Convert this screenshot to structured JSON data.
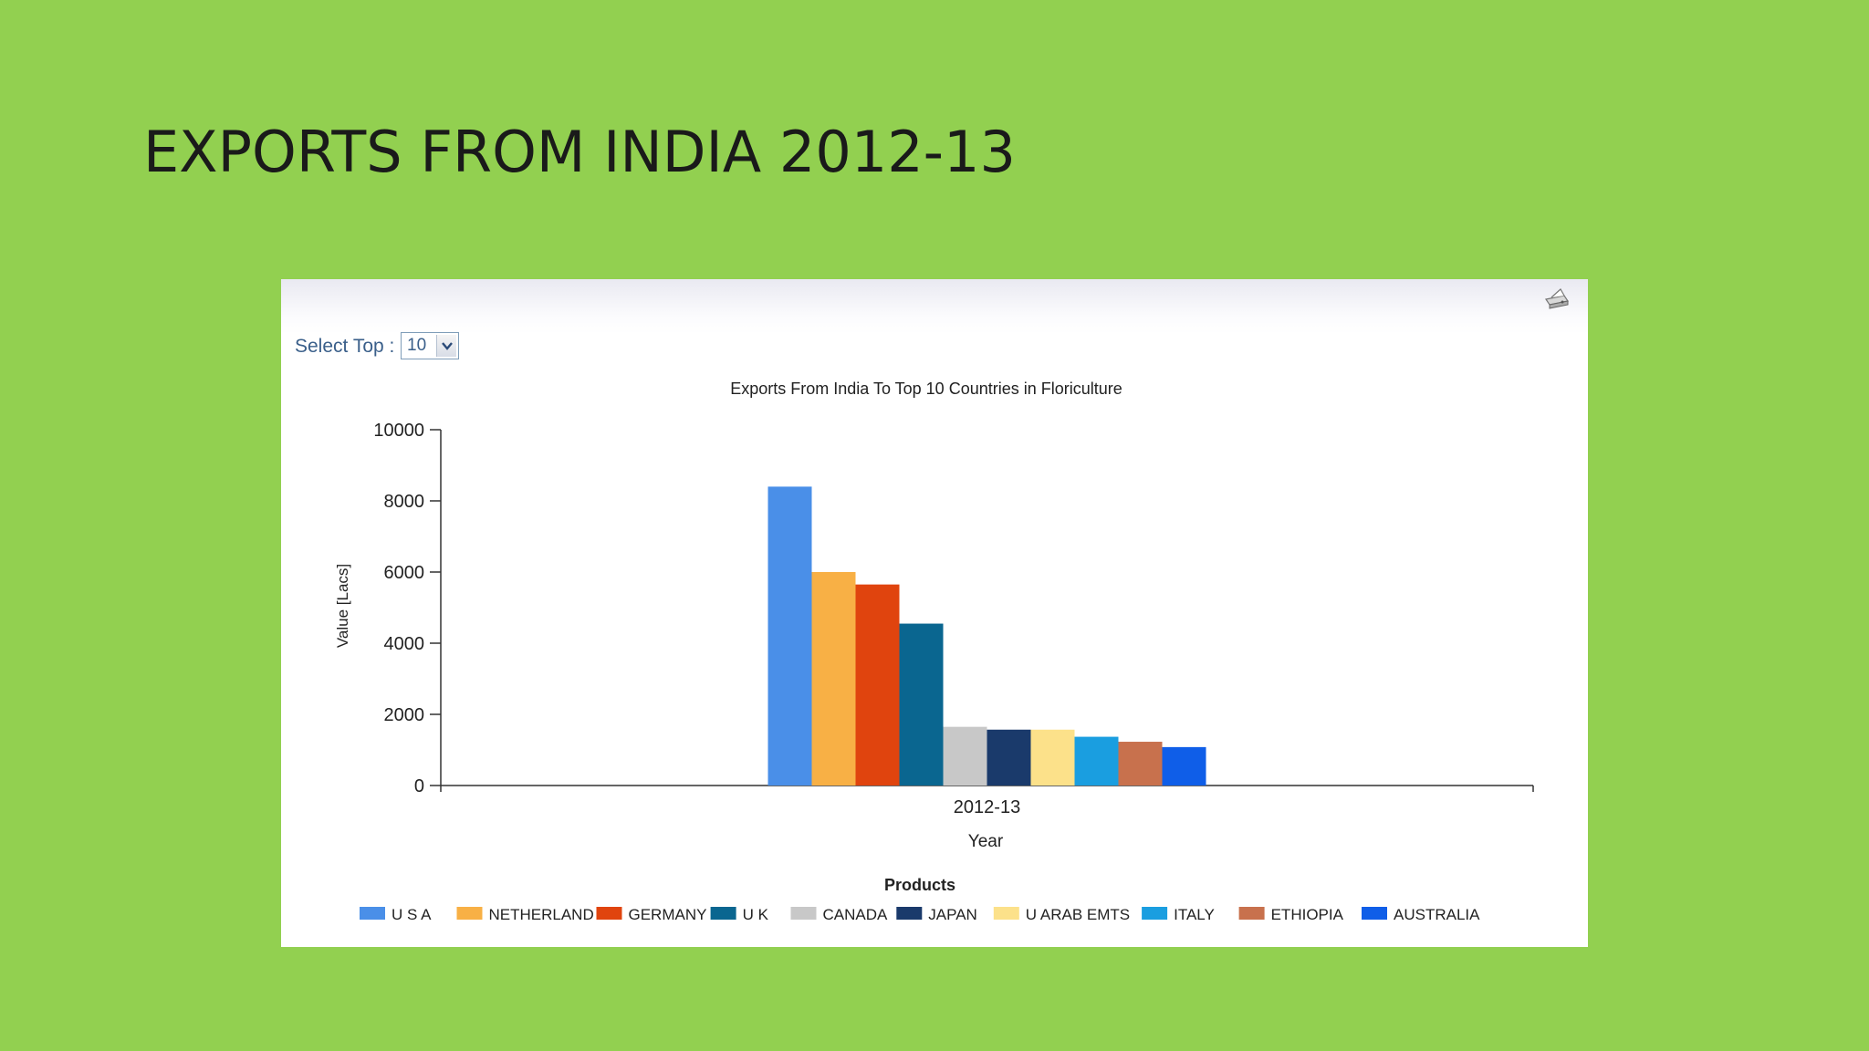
{
  "slide": {
    "title": "EXPORTS FROM INDIA 2012-13"
  },
  "controls": {
    "select_top_label": "Select Top :",
    "select_top_value": "10",
    "print_icon": "printer-icon",
    "dropdown_icon": "chevron-down-icon"
  },
  "chart_data": {
    "type": "bar",
    "title": "Exports From India To Top 10 Countries in Floriculture",
    "xlabel": "Year",
    "ylabel": "Value [Lacs]",
    "categories": [
      "2012-13"
    ],
    "ylim": [
      0,
      10000
    ],
    "yticks": [
      0,
      2000,
      4000,
      6000,
      8000,
      10000
    ],
    "legend_title": "Products",
    "legend_position": "bottom",
    "grid": false,
    "series": [
      {
        "name": "U S A",
        "values": [
          8400
        ],
        "color": "#4a8fe8"
      },
      {
        "name": "NETHERLAND",
        "values": [
          6000
        ],
        "color": "#f8b045"
      },
      {
        "name": "GERMANY",
        "values": [
          5650
        ],
        "color": "#e0440e"
      },
      {
        "name": "U K",
        "values": [
          4550
        ],
        "color": "#0a6690"
      },
      {
        "name": "CANADA",
        "values": [
          1650
        ],
        "color": "#c8c8c8"
      },
      {
        "name": "JAPAN",
        "values": [
          1570
        ],
        "color": "#1a3a6b"
      },
      {
        "name": "U ARAB EMTS",
        "values": [
          1570
        ],
        "color": "#fce18a"
      },
      {
        "name": "ITALY",
        "values": [
          1370
        ],
        "color": "#1a9ee0"
      },
      {
        "name": "ETHIOPIA",
        "values": [
          1230
        ],
        "color": "#c8714d"
      },
      {
        "name": "AUSTRALIA",
        "values": [
          1080
        ],
        "color": "#0f5ee8"
      }
    ]
  }
}
